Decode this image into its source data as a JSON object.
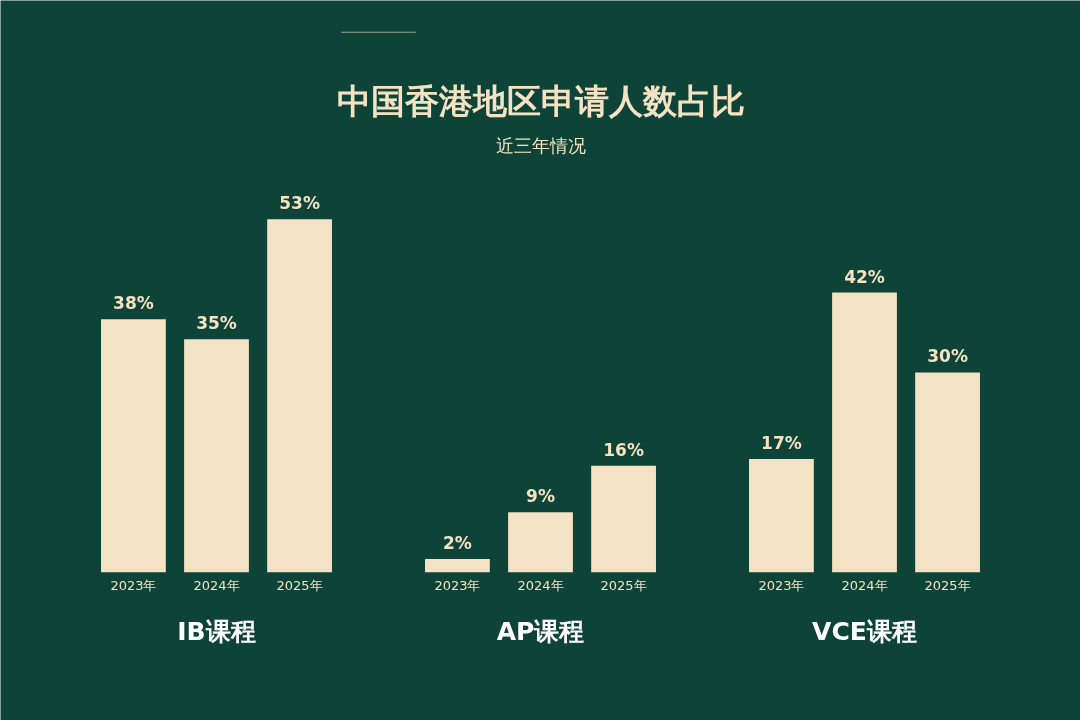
{
  "chart_data": {
    "type": "bar",
    "title": "中国香港地区申请人数占比",
    "subtitle": "近三年情况",
    "categories": [
      "2023年",
      "2024年",
      "2025年",
      "2023年",
      "2024年",
      "2025年",
      "2023年",
      "2024年",
      "2025年"
    ],
    "values": [
      38,
      35,
      53,
      2,
      9,
      16,
      17,
      42,
      30
    ],
    "value_labels": [
      "38%",
      "35%",
      "53%",
      "2%",
      "9%",
      "16%",
      "17%",
      "42%",
      "30%"
    ],
    "color": "#f3e2c3",
    "annotations": [
      "IB课程",
      "AP课程",
      "VCE课程"
    ]
  }
}
